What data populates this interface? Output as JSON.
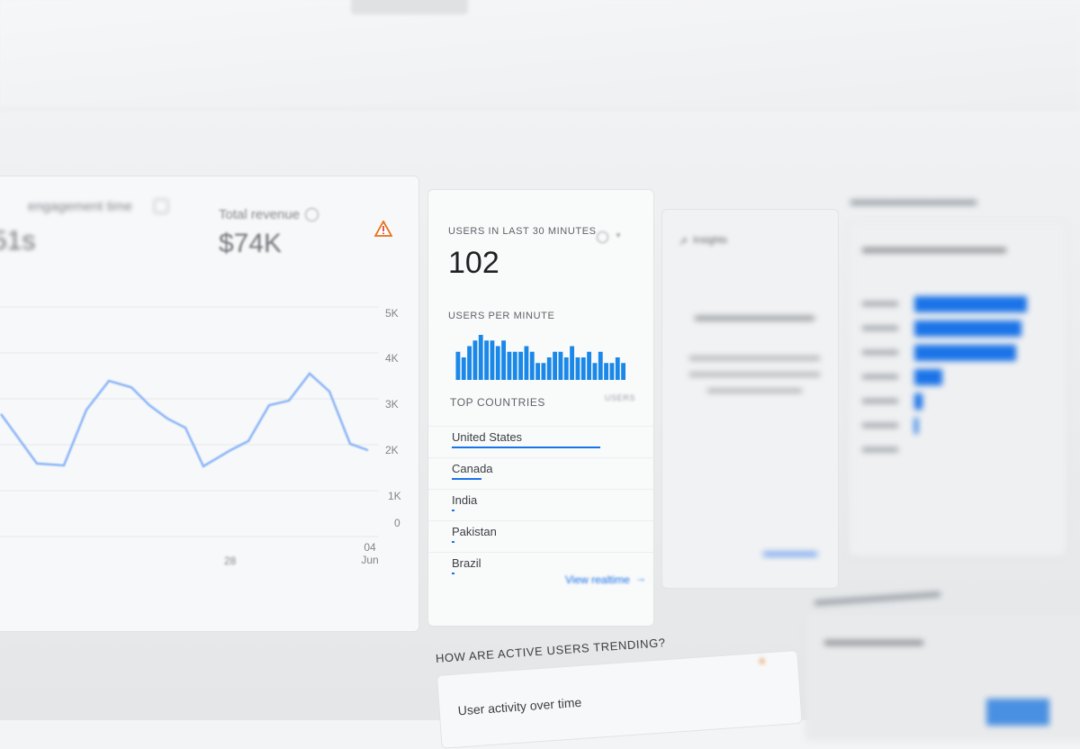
{
  "metrics": [
    {
      "label": "engagement time",
      "value": "51s"
    },
    {
      "label": "Total revenue",
      "value": "$74K"
    }
  ],
  "colors": {
    "accent": "#1a73e8",
    "warning": "#d93025",
    "line": "#8ab4f8"
  },
  "icons": {
    "help": "help-circle-icon",
    "warning": "warning-triangle-icon",
    "compare": "compare-icon",
    "chevron": "chevron-down-icon",
    "arrow": "arrow-right-icon",
    "insights": "insights-icon"
  },
  "chart_data": [
    {
      "type": "line",
      "y_ticks": [
        "0",
        "1K",
        "2K",
        "3K",
        "4K",
        "5K"
      ],
      "x_ticks": [
        "28",
        "04 Jun"
      ],
      "ylim": [
        0,
        5000
      ],
      "grid": true,
      "values": [
        2670,
        1590,
        1550,
        2760,
        3390,
        3250,
        2860,
        2570,
        2370,
        1530,
        1880,
        2080,
        2860,
        2960,
        3550,
        3160,
        2020,
        1880
      ]
    },
    {
      "type": "bar",
      "title": "USERS PER MINUTE",
      "values": [
        5,
        4,
        6,
        7,
        8,
        7,
        7,
        6,
        7,
        5,
        5,
        5,
        6,
        5,
        3,
        3,
        4,
        5,
        5,
        4,
        6,
        4,
        4,
        5,
        3,
        5,
        3,
        3,
        4,
        3
      ]
    }
  ],
  "realtime": {
    "title": "USERS IN LAST 30 MINUTES",
    "count": "102",
    "per_minute_label": "USERS PER MINUTE",
    "countries_label": "TOP COUNTRIES",
    "users_label": "USERS",
    "countries": [
      {
        "name": "United States",
        "share": 1.0
      },
      {
        "name": "Canada",
        "share": 0.2
      },
      {
        "name": "India",
        "share": 0.02
      },
      {
        "name": "Pakistan",
        "share": 0.02
      },
      {
        "name": "Brazil",
        "share": 0.01
      }
    ],
    "view_link": "View realtime"
  },
  "insights": {
    "title": "Insights"
  },
  "trending": {
    "heading": "HOW ARE ACTIVE USERS TRENDING?",
    "card_title": "User activity over time"
  }
}
